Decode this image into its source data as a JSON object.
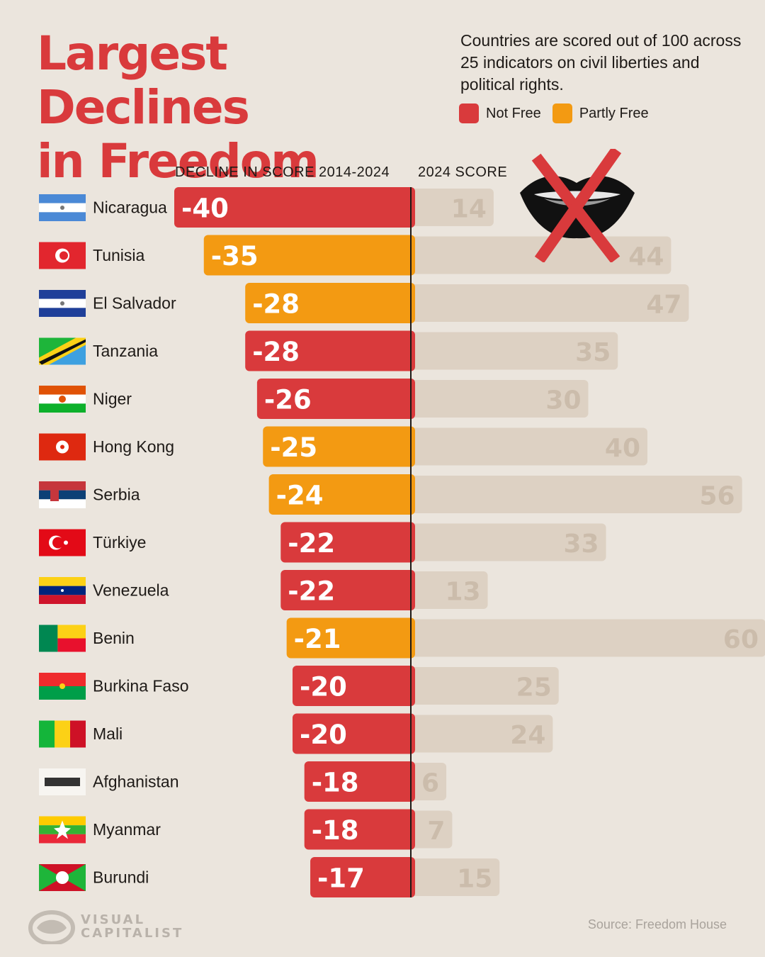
{
  "title_line1": "Largest Declines",
  "title_line2": "in Freedom",
  "subtitle": "Countries are scored out of 100 across 25 indicators on civil liberties and political rights.",
  "legend": [
    {
      "label": "Not Free",
      "color": "#d93a3c"
    },
    {
      "label": "Partly Free",
      "color": "#f39a12"
    }
  ],
  "col_decline": "DECLINE IN SCORE 2014-2024",
  "col_score": "2024 SCORE",
  "source": "Source: Freedom House",
  "logo": {
    "line1": "VISUAL",
    "line2": "CAPITALIST"
  },
  "chart_data": {
    "type": "bar",
    "categories": [
      "Nicaragua",
      "Tunisia",
      "El Salvador",
      "Tanzania",
      "Niger",
      "Hong Kong",
      "Serbia",
      "Türkiye",
      "Venezuela",
      "Benin",
      "Burkina Faso",
      "Mali",
      "Afghanistan",
      "Myanmar",
      "Burundi"
    ],
    "series": [
      {
        "name": "DECLINE IN SCORE 2014-2024",
        "values": [
          -40,
          -35,
          -28,
          -28,
          -26,
          -25,
          -24,
          -22,
          -22,
          -21,
          -20,
          -20,
          -18,
          -18,
          -17
        ]
      },
      {
        "name": "2024 SCORE",
        "values": [
          14,
          44,
          47,
          35,
          30,
          40,
          56,
          33,
          13,
          60,
          25,
          24,
          6,
          7,
          15
        ]
      }
    ],
    "status": [
      "Not Free",
      "Partly Free",
      "Partly Free",
      "Not Free",
      "Not Free",
      "Partly Free",
      "Partly Free",
      "Not Free",
      "Not Free",
      "Partly Free",
      "Not Free",
      "Not Free",
      "Not Free",
      "Not Free",
      "Not Free"
    ],
    "colors": {
      "Not Free": "#d93a3c",
      "Partly Free": "#f39a12",
      "score": "#ddd1c3",
      "score_text": "#cbbcab"
    },
    "flags": [
      "nicaragua-flag-icon",
      "tunisia-flag-icon",
      "el-salvador-flag-icon",
      "tanzania-flag-icon",
      "niger-flag-icon",
      "hong-kong-flag-icon",
      "serbia-flag-icon",
      "turkiye-flag-icon",
      "venezuela-flag-icon",
      "benin-flag-icon",
      "burkina-faso-flag-icon",
      "mali-flag-icon",
      "afghanistan-flag-icon",
      "myanmar-flag-icon",
      "burundi-flag-icon"
    ]
  }
}
